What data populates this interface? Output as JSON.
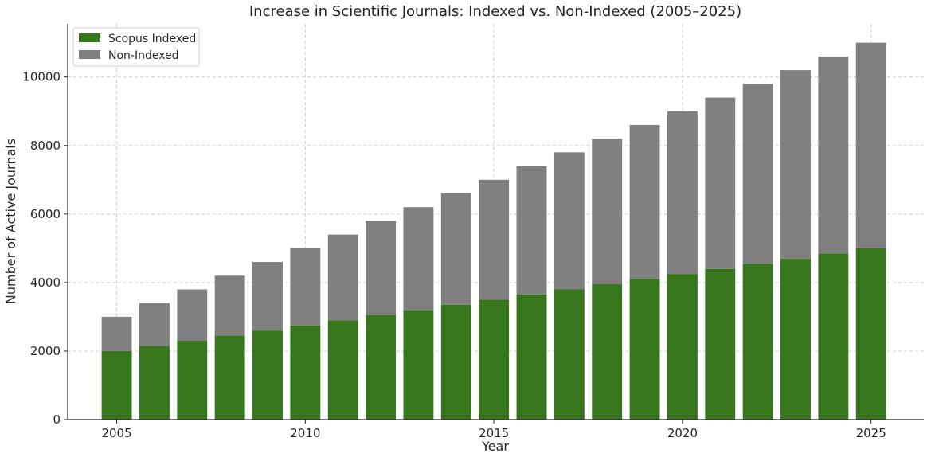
{
  "chart_data": {
    "type": "bar",
    "stacked": true,
    "title": "Increase in Scientific Journals: Indexed vs. Non-Indexed (2005–2025)",
    "xlabel": "Year",
    "ylabel": "Number of Active Journals",
    "x": [
      2005,
      2006,
      2007,
      2008,
      2009,
      2010,
      2011,
      2012,
      2013,
      2014,
      2015,
      2016,
      2017,
      2018,
      2019,
      2020,
      2021,
      2022,
      2023,
      2024,
      2025
    ],
    "x_ticks": [
      "2005",
      "2010",
      "2015",
      "2020",
      "2025"
    ],
    "y_ticks": [
      "0",
      "2000",
      "4000",
      "6000",
      "8000",
      "10000"
    ],
    "ylim": [
      0,
      11550
    ],
    "grid": true,
    "legend_position": "top-left",
    "series": [
      {
        "name": "Scopus Indexed",
        "color": "#38761d",
        "values": [
          2000,
          2150,
          2300,
          2450,
          2600,
          2750,
          2900,
          3050,
          3200,
          3350,
          3500,
          3650,
          3800,
          3950,
          4100,
          4250,
          4400,
          4550,
          4700,
          4850,
          5000
        ]
      },
      {
        "name": "Non-Indexed",
        "color": "#808080",
        "values": [
          1000,
          1250,
          1500,
          1750,
          2000,
          2250,
          2500,
          2750,
          3000,
          3250,
          3500,
          3750,
          4000,
          4250,
          4500,
          4750,
          5000,
          5250,
          5500,
          5750,
          6000
        ]
      }
    ]
  }
}
